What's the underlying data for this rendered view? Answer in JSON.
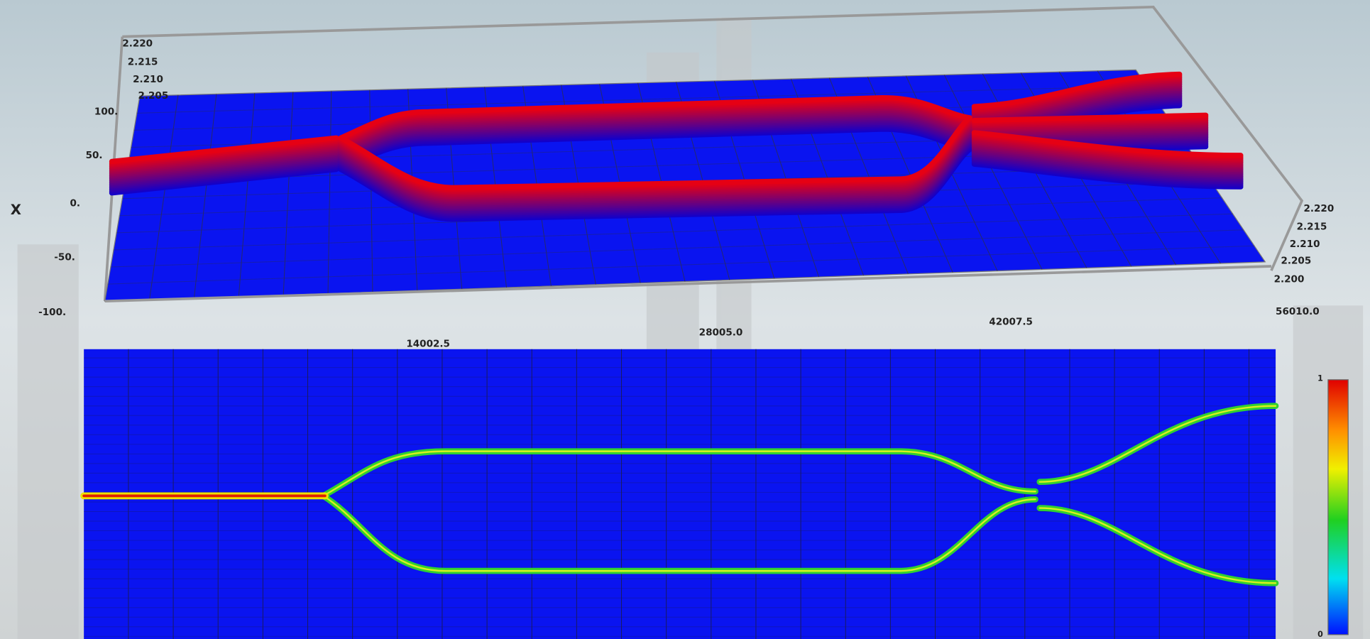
{
  "plot3d": {
    "axis_label": "X",
    "x_ticks": [
      "14002.5",
      "28005.0",
      "42007.5",
      "56010.0"
    ],
    "y_ticks": [
      "100.",
      "50.",
      "0.",
      "-50.",
      "-100."
    ],
    "z_ticks_left": [
      "2.220",
      "2.215",
      "2.210",
      "2.205"
    ],
    "z_ticks_right": [
      "2.220",
      "2.215",
      "2.210",
      "2.205",
      "2.200"
    ]
  },
  "colorbar": {
    "labels": [
      "1",
      "0"
    ]
  }
}
